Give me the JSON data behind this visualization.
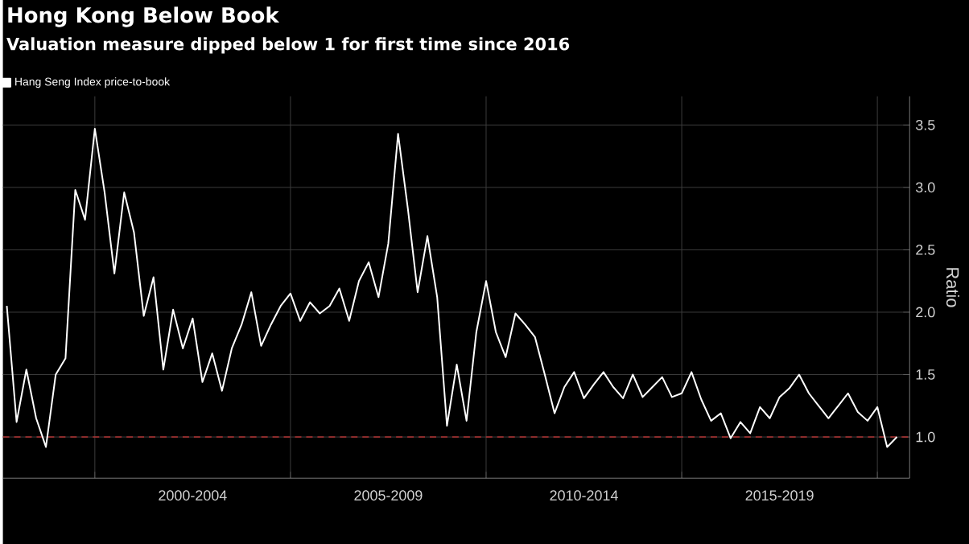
{
  "chart_data": {
    "type": "line",
    "title": "Hong Kong Below Book",
    "subtitle": "Valuation measure dipped below 1 for first time since 2016",
    "ylabel": "Ratio",
    "categories": [
      null,
      null,
      null,
      null,
      null,
      null,
      null,
      null,
      null,
      null,
      null,
      null,
      null,
      null,
      null,
      null,
      null,
      null,
      null,
      "2000-2004",
      null,
      null,
      null,
      null,
      null,
      null,
      null,
      null,
      null,
      null,
      null,
      null,
      null,
      null,
      null,
      null,
      null,
      null,
      null,
      "2005-2009",
      null,
      null,
      null,
      null,
      null,
      null,
      null,
      null,
      null,
      null,
      null,
      null,
      null,
      null,
      null,
      null,
      null,
      null,
      null,
      "2010-2014",
      null,
      null,
      null,
      null,
      null,
      null,
      null,
      null,
      null,
      null,
      null,
      null,
      null,
      null,
      null,
      null,
      null,
      null,
      null,
      "2015-2019",
      null,
      null,
      null,
      null,
      null,
      null,
      null,
      null,
      null,
      null,
      null,
      null
    ],
    "series": [
      {
        "name": "Hang Seng Index price-to-book",
        "color": "#ffffff",
        "values": [
          2.05,
          1.12,
          1.54,
          1.15,
          0.92,
          1.5,
          1.63,
          2.98,
          2.74,
          3.47,
          2.96,
          2.31,
          2.96,
          2.64,
          1.97,
          2.28,
          1.54,
          2.02,
          1.71,
          1.95,
          1.44,
          1.67,
          1.37,
          1.71,
          1.9,
          2.16,
          1.73,
          1.9,
          2.05,
          2.15,
          1.93,
          2.08,
          1.99,
          2.05,
          2.19,
          1.93,
          2.25,
          2.4,
          2.12,
          2.55,
          3.43,
          2.83,
          2.16,
          2.61,
          2.12,
          1.09,
          1.58,
          1.13,
          1.84,
          2.25,
          1.84,
          1.64,
          1.99,
          1.9,
          1.8,
          1.5,
          1.19,
          1.4,
          1.52,
          1.31,
          1.42,
          1.52,
          1.4,
          1.31,
          1.5,
          1.32,
          1.4,
          1.48,
          1.32,
          1.35,
          1.52,
          1.3,
          1.13,
          1.19,
          0.99,
          1.12,
          1.03,
          1.24,
          1.15,
          1.32,
          1.39,
          1.5,
          1.35,
          1.25,
          1.15,
          1.25,
          1.35,
          1.2,
          1.13,
          1.24,
          0.92,
          1.0
        ]
      }
    ],
    "ylim": [
      0.67,
      3.73
    ],
    "yticks": [
      {
        "value": 1,
        "label": "1.0"
      },
      {
        "value": 1.5,
        "label": "1.5"
      },
      {
        "value": 2,
        "label": "2.0"
      },
      {
        "value": 2.5,
        "label": "2.5"
      },
      {
        "value": 3,
        "label": "3.0"
      },
      {
        "value": 3.5,
        "label": "3.5"
      }
    ],
    "grid": true,
    "legend": "top left",
    "ref_lines": [
      {
        "axis": "y",
        "value": 1,
        "color": "#b03030",
        "line_style": "dashed"
      }
    ]
  }
}
